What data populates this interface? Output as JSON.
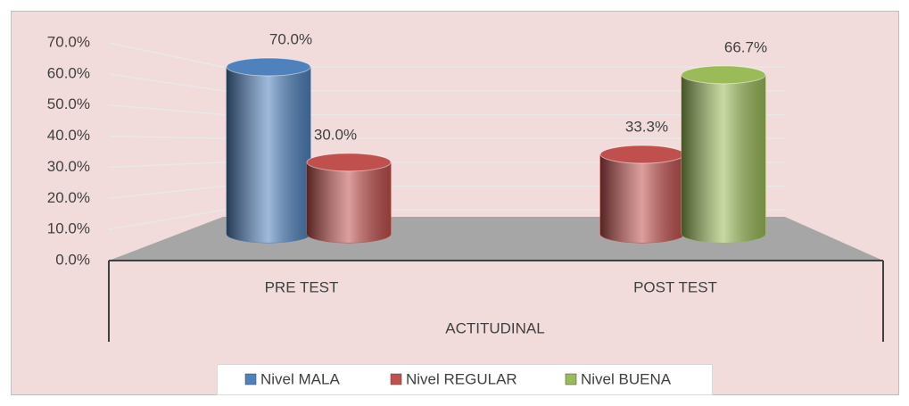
{
  "chart_data": {
    "type": "bar3d",
    "categories": [
      "PRE TEST",
      "POST TEST"
    ],
    "x_label": "ACTITUDINAL",
    "series": [
      {
        "name": "Nivel MALA",
        "color": "#4f81bd",
        "values": [
          70,
          null
        ],
        "value_labels": [
          "70.0%",
          null
        ]
      },
      {
        "name": "Nivel REGULAR",
        "color": "#c0504d",
        "values": [
          30,
          33.3
        ],
        "value_labels": [
          "30.0%",
          "33.3%"
        ]
      },
      {
        "name": "Nivel BUENA",
        "color": "#9bbb59",
        "values": [
          null,
          66.7
        ],
        "value_labels": [
          null,
          "66.7%"
        ]
      }
    ],
    "ylim": [
      0,
      70
    ],
    "yticks": [
      {
        "value": 0,
        "label": "0.0%"
      },
      {
        "value": 10,
        "label": "10.0%"
      },
      {
        "value": 20,
        "label": "20.0%"
      },
      {
        "value": 30,
        "label": "30.0%"
      },
      {
        "value": 40,
        "label": "40.0%"
      },
      {
        "value": 50,
        "label": "50.0%"
      },
      {
        "value": 60,
        "label": "60.0%"
      },
      {
        "value": 70,
        "label": "70.0%"
      }
    ],
    "grid": true,
    "legend": "bottom"
  }
}
